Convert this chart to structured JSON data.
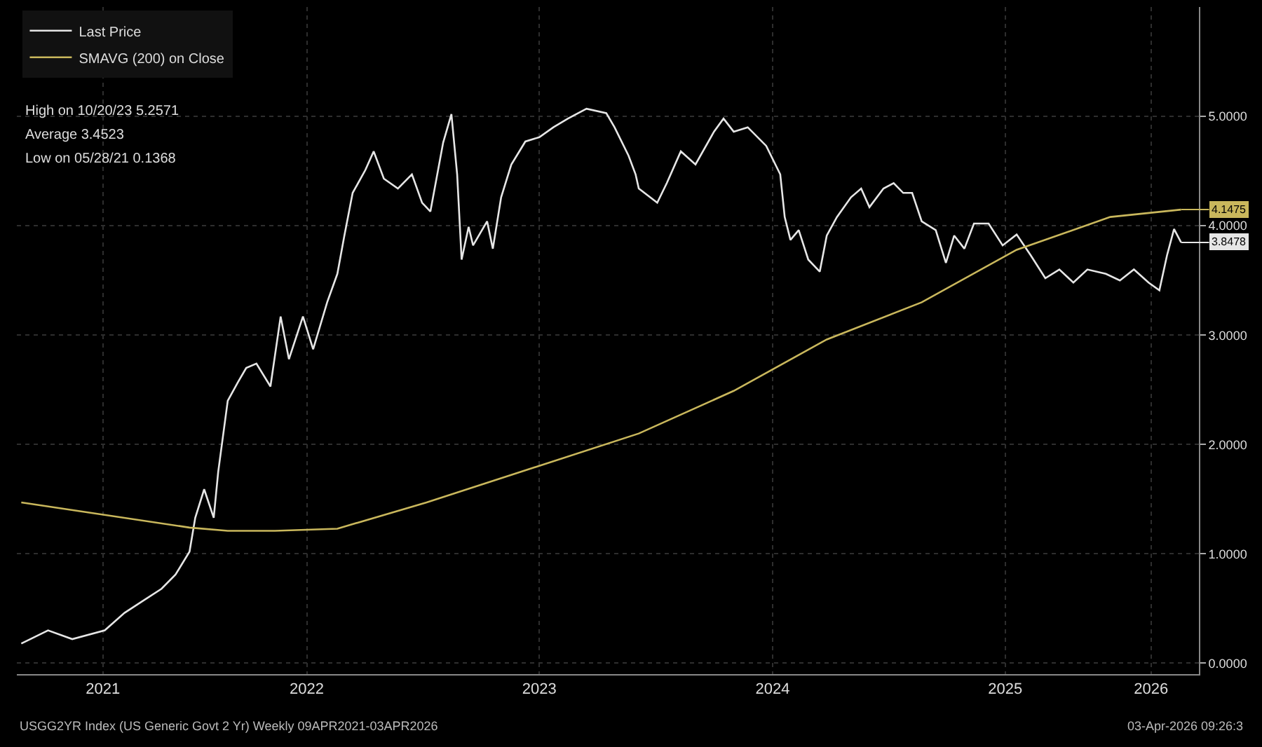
{
  "chart_data": {
    "type": "line",
    "series": [
      {
        "name": "Last Price",
        "color": "#e6e6e6",
        "x": [
          "2021-04-09",
          "2021-05-21",
          "2021-06-28",
          "2021-08-18",
          "2021-09-18",
          "2021-10-17",
          "2021-11-15",
          "2021-12-07",
          "2021-12-29",
          "2022-01-07",
          "2022-01-21",
          "2022-02-05",
          "2022-02-12",
          "2022-02-27",
          "2022-03-15",
          "2022-03-28",
          "2022-04-13",
          "2022-05-05",
          "2022-05-21",
          "2022-06-03",
          "2022-06-25",
          "2022-07-11",
          "2022-08-02",
          "2022-08-18",
          "2022-08-29",
          "2022-09-11",
          "2022-10-01",
          "2022-10-14",
          "2022-10-30",
          "2022-11-21",
          "2022-12-13",
          "2022-12-29",
          "2023-01-11",
          "2023-01-31",
          "2023-02-13",
          "2023-02-22",
          "2023-03-01",
          "2023-03-12",
          "2023-03-19",
          "2023-04-10",
          "2023-04-19",
          "2023-05-02",
          "2023-05-18",
          "2023-06-09",
          "2023-07-01",
          "2023-07-23",
          "2023-08-15",
          "2023-09-13",
          "2023-10-14",
          "2023-10-27",
          "2023-11-18",
          "2023-11-29",
          "2023-12-04",
          "2024-01-02",
          "2024-01-17",
          "2024-02-08",
          "2024-03-02",
          "2024-03-31",
          "2024-04-15",
          "2024-05-01",
          "2024-05-23",
          "2024-06-21",
          "2024-07-13",
          "2024-07-20",
          "2024-07-29",
          "2024-08-11",
          "2024-08-26",
          "2024-09-13",
          "2024-09-24",
          "2024-10-10",
          "2024-11-01",
          "2024-11-17",
          "2024-11-30",
          "2024-12-22",
          "2025-01-07",
          "2025-01-22",
          "2025-02-05",
          "2025-02-20",
          "2025-03-14",
          "2025-03-30",
          "2025-04-12",
          "2025-04-28",
          "2025-05-13",
          "2025-06-05",
          "2025-06-27",
          "2025-07-19",
          "2025-08-10",
          "2025-09-02",
          "2025-09-24",
          "2025-10-16",
          "2025-11-07",
          "2025-12-06",
          "2025-12-28",
          "2026-01-19",
          "2026-02-11",
          "2026-02-28",
          "2026-03-12",
          "2026-03-23",
          "2026-04-03"
        ],
        "values": [
          0.18,
          0.3,
          0.22,
          0.3,
          0.46,
          0.57,
          0.68,
          0.81,
          1.02,
          1.33,
          1.59,
          1.33,
          1.75,
          2.4,
          2.57,
          2.7,
          2.74,
          2.53,
          3.17,
          2.78,
          3.17,
          2.87,
          3.3,
          3.56,
          3.91,
          4.3,
          4.51,
          4.68,
          4.43,
          4.34,
          4.47,
          4.21,
          4.13,
          4.76,
          5.02,
          4.47,
          3.69,
          3.99,
          3.82,
          4.04,
          3.79,
          4.26,
          4.56,
          4.77,
          4.81,
          4.9,
          4.98,
          5.07,
          5.03,
          4.9,
          4.64,
          4.47,
          4.34,
          4.21,
          4.39,
          4.68,
          4.56,
          4.86,
          4.98,
          4.86,
          4.9,
          4.73,
          4.47,
          4.08,
          3.87,
          3.96,
          3.69,
          3.58,
          3.91,
          4.08,
          4.26,
          4.34,
          4.17,
          4.34,
          4.39,
          4.3,
          4.3,
          4.04,
          3.96,
          3.66,
          3.91,
          3.79,
          4.02,
          4.02,
          3.82,
          3.92,
          3.73,
          3.52,
          3.6,
          3.48,
          3.6,
          3.56,
          3.5,
          3.6,
          3.48,
          3.41,
          3.73,
          3.97,
          3.8478
        ]
      },
      {
        "name": "SMAVG (200) on Close",
        "color": "#c9b75c",
        "x": [
          "2021-04-09",
          "2021-12-29",
          "2022-02-27",
          "2022-05-12",
          "2022-08-18",
          "2023-01-05",
          "2023-06-02",
          "2023-12-04",
          "2024-05-01",
          "2024-09-24",
          "2025-02-20",
          "2025-07-19",
          "2025-12-13",
          "2026-04-03"
        ],
        "values": [
          1.47,
          1.24,
          1.21,
          1.21,
          1.23,
          1.47,
          1.75,
          2.1,
          2.49,
          2.96,
          3.3,
          3.78,
          4.08,
          4.1475
        ]
      }
    ],
    "annotations": [
      "High on 10/20/23 5.2571",
      "Average 3.4523",
      "Low on 05/28/21 0.1368",
      {
        "text": "4.1475",
        "x": "2026-04-03",
        "y": 4.1475
      },
      {
        "text": "3.8478",
        "x": "2026-04-03",
        "y": 3.8478
      },
      "USGG2YR Index (US Generic Govt 2 Yr) Weekly 09APR2021-03APR2026",
      "03-Apr-2026 09:26:3"
    ],
    "xlim": [
      "2021-04-02",
      "2026-05-01"
    ],
    "xticks": [
      {
        "value": "2021-08-15",
        "label": "2021"
      },
      {
        "value": "2022-07-01",
        "label": "2022"
      },
      {
        "value": "2023-07-01",
        "label": "2023"
      },
      {
        "value": "2024-07-01",
        "label": "2024"
      },
      {
        "value": "2025-07-01",
        "label": "2025"
      },
      {
        "value": "2026-02-15",
        "label": "2026"
      }
    ],
    "ylim": [
      -0.1,
      6.0
    ],
    "yticks": [
      {
        "value": 0,
        "label": "0.0000"
      },
      {
        "value": 1,
        "label": "1.0000"
      },
      {
        "value": 2,
        "label": "2.0000"
      },
      {
        "value": 3,
        "label": "3.0000"
      },
      {
        "value": 4,
        "label": "4.0000"
      },
      {
        "value": 5,
        "label": "5.0000"
      }
    ],
    "grid": true,
    "legend": "top left",
    "marker": "none",
    "line_style": "solid"
  }
}
